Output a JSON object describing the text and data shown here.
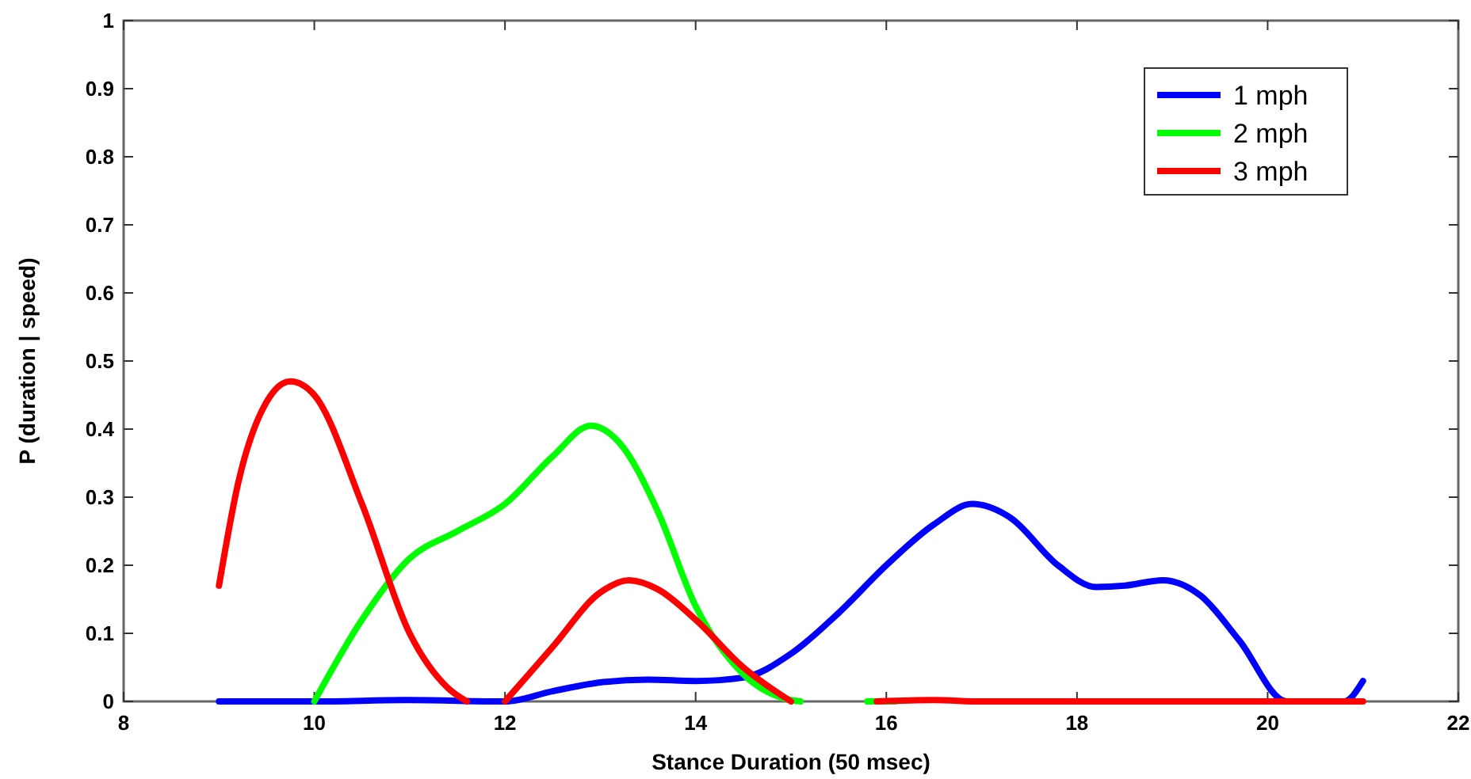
{
  "chart_data": {
    "type": "line",
    "xlabel": "Stance Duration (50 msec)",
    "ylabel": "P (duration | speed)",
    "xlim": [
      8,
      22
    ],
    "xticks": [
      8,
      10,
      12,
      14,
      16,
      18,
      20,
      22
    ],
    "ylim": [
      0,
      1
    ],
    "yticks": [
      0,
      0.1,
      0.2,
      0.3,
      0.4,
      0.5,
      0.6,
      0.7,
      0.8,
      0.9,
      1
    ],
    "grid": false,
    "legend": "top right",
    "line_style": "solid",
    "marker": "none",
    "series": [
      {
        "name": "1 mph",
        "color": "#0000ff",
        "x": [
          9,
          10,
          11,
          12,
          12.5,
          13,
          13.5,
          14,
          14.5,
          15,
          15.5,
          16,
          16.5,
          16.9,
          17.3,
          17.8,
          18.2,
          18.5,
          18.9,
          19.3,
          19.7,
          20.2,
          20.8,
          21
        ],
        "values": [
          0,
          0,
          0.002,
          0,
          0.015,
          0.028,
          0.032,
          0.03,
          0.035,
          0.07,
          0.13,
          0.2,
          0.26,
          0.29,
          0.27,
          0.2,
          0.168,
          0.17,
          0.178,
          0.155,
          0.09,
          0,
          0,
          0.03
        ]
      },
      {
        "name": "2 mph",
        "color": "#00ff00",
        "x": [
          10,
          10.5,
          11,
          11.5,
          12,
          12.5,
          12.9,
          13.2,
          13.6,
          14,
          14.5,
          15,
          15.1,
          15.5,
          15.8,
          16.1
        ],
        "values": [
          0,
          0.12,
          0.21,
          0.25,
          0.29,
          0.36,
          0.405,
          0.38,
          0.28,
          0.14,
          0.04,
          0.002,
          0,
          null,
          0,
          0
        ]
      },
      {
        "name": "3 mph",
        "color": "#ff0000",
        "x": [
          9,
          9.2,
          9.5,
          9.75,
          10,
          10.5,
          11,
          11.4,
          11.6,
          11.8,
          12,
          12.5,
          13,
          13.3,
          13.6,
          14,
          14.5,
          15,
          15.5,
          15.9,
          16.5,
          17,
          21
        ],
        "values": [
          0.17,
          0.32,
          0.44,
          0.47,
          0.45,
          0.29,
          0.1,
          0.02,
          0,
          null,
          0,
          0.08,
          0.16,
          0.178,
          0.165,
          0.12,
          0.05,
          0,
          null,
          0,
          0.002,
          0,
          0
        ]
      }
    ]
  }
}
